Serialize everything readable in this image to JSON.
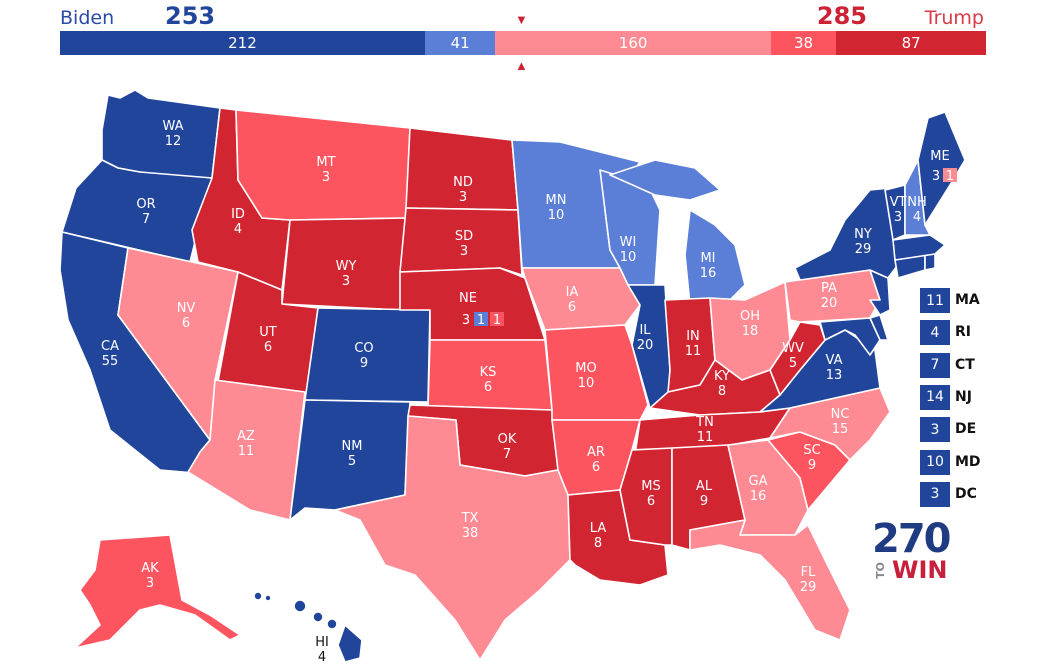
{
  "header": {
    "biden": {
      "name": "Biden",
      "total": "253"
    },
    "trump": {
      "name": "Trump",
      "total": "285"
    }
  },
  "colors": {
    "safe_dem": "#22459c",
    "lean_dem": "#5b7fd6",
    "tossup": "#bdbdbd",
    "lean_rep": "#fe8a94",
    "likely_rep": "#fd5560",
    "safe_rep": "#d22532",
    "border": "#ffffff"
  },
  "bar": [
    {
      "label": "212",
      "value": 212,
      "color": "#22459c"
    },
    {
      "label": "41",
      "value": 41,
      "color": "#5b7fd6"
    },
    {
      "label": "160",
      "value": 160,
      "color": "#fe8a94"
    },
    {
      "label": "38",
      "value": 38,
      "color": "#fd5560"
    },
    {
      "label": "87",
      "value": 87,
      "color": "#d22532"
    }
  ],
  "markers": {
    "midpoint": "270-to-win-marker"
  },
  "states": {
    "WA": {
      "abbr": "WA",
      "ev": "12"
    },
    "OR": {
      "abbr": "OR",
      "ev": "7"
    },
    "CA": {
      "abbr": "CA",
      "ev": "55"
    },
    "NV": {
      "abbr": "NV",
      "ev": "6"
    },
    "ID": {
      "abbr": "ID",
      "ev": "4"
    },
    "MT": {
      "abbr": "MT",
      "ev": "3"
    },
    "WY": {
      "abbr": "WY",
      "ev": "3"
    },
    "UT": {
      "abbr": "UT",
      "ev": "6"
    },
    "AZ": {
      "abbr": "AZ",
      "ev": "11"
    },
    "CO": {
      "abbr": "CO",
      "ev": "9"
    },
    "NM": {
      "abbr": "NM",
      "ev": "5"
    },
    "ND": {
      "abbr": "ND",
      "ev": "3"
    },
    "SD": {
      "abbr": "SD",
      "ev": "3"
    },
    "NE": {
      "abbr": "NE",
      "ev": "3",
      "split": [
        "1",
        "1"
      ]
    },
    "KS": {
      "abbr": "KS",
      "ev": "6"
    },
    "OK": {
      "abbr": "OK",
      "ev": "7"
    },
    "TX": {
      "abbr": "TX",
      "ev": "38"
    },
    "MN": {
      "abbr": "MN",
      "ev": "10"
    },
    "IA": {
      "abbr": "IA",
      "ev": "6"
    },
    "MO": {
      "abbr": "MO",
      "ev": "10"
    },
    "AR": {
      "abbr": "AR",
      "ev": "6"
    },
    "LA": {
      "abbr": "LA",
      "ev": "8"
    },
    "WI": {
      "abbr": "WI",
      "ev": "10"
    },
    "IL": {
      "abbr": "IL",
      "ev": "20"
    },
    "MI": {
      "abbr": "MI",
      "ev": "16"
    },
    "IN": {
      "abbr": "IN",
      "ev": "11"
    },
    "OH": {
      "abbr": "OH",
      "ev": "18"
    },
    "KY": {
      "abbr": "KY",
      "ev": "8"
    },
    "TN": {
      "abbr": "TN",
      "ev": "11"
    },
    "MS": {
      "abbr": "MS",
      "ev": "6"
    },
    "AL": {
      "abbr": "AL",
      "ev": "9"
    },
    "GA": {
      "abbr": "GA",
      "ev": "16"
    },
    "FL": {
      "abbr": "FL",
      "ev": "29"
    },
    "SC": {
      "abbr": "SC",
      "ev": "9"
    },
    "NC": {
      "abbr": "NC",
      "ev": "15"
    },
    "VA": {
      "abbr": "VA",
      "ev": "13"
    },
    "WV": {
      "abbr": "WV",
      "ev": "5"
    },
    "PA": {
      "abbr": "PA",
      "ev": "20"
    },
    "NY": {
      "abbr": "NY",
      "ev": "29"
    },
    "VT": {
      "abbr": "VT",
      "ev": "3"
    },
    "NH": {
      "abbr": "NH",
      "ev": "4"
    },
    "ME": {
      "abbr": "ME",
      "ev": "3",
      "split": "1"
    },
    "AK": {
      "abbr": "AK",
      "ev": "3"
    },
    "HI": {
      "abbr": "HI",
      "ev": "4"
    }
  },
  "northeast": [
    {
      "ev": "11",
      "abbr": "MA"
    },
    {
      "ev": "4",
      "abbr": "RI"
    },
    {
      "ev": "7",
      "abbr": "CT"
    },
    {
      "ev": "14",
      "abbr": "NJ"
    },
    {
      "ev": "3",
      "abbr": "DE"
    },
    {
      "ev": "10",
      "abbr": "MD"
    },
    {
      "ev": "3",
      "abbr": "DC"
    }
  ],
  "logo": {
    "number": "270",
    "to": "TO",
    "win": "WIN"
  }
}
